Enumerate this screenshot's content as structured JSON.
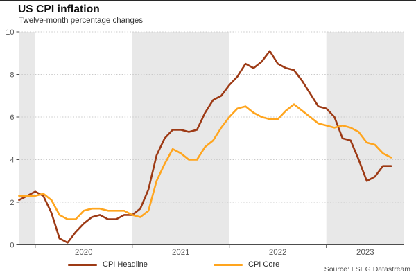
{
  "source": "Source: LSEG Datastream",
  "chart_data": {
    "type": "line",
    "title": "US CPI inflation",
    "subtitle": "Twelve-month percentage changes",
    "x_start": "2019-11",
    "x_end": "2023-09",
    "x_step": "1 month",
    "x_axis_year_labels": [
      "2020",
      "2021",
      "2022",
      "2023"
    ],
    "y_ticks": [
      0,
      2,
      4,
      6,
      8,
      10
    ],
    "ylim": [
      0,
      10
    ],
    "grid": "horizontal dotted lines at each y tick",
    "legend_position": "bottom",
    "plot_bands": {
      "shaded_years": [
        "2019",
        "2021",
        "2023"
      ],
      "color": "#e8e8e8"
    },
    "series": [
      {
        "name": "CPI Headline",
        "color": "#9d3a15",
        "values": [
          2.1,
          2.3,
          2.5,
          2.3,
          1.5,
          0.3,
          0.1,
          0.6,
          1.0,
          1.3,
          1.4,
          1.2,
          1.2,
          1.4,
          1.4,
          1.7,
          2.6,
          4.2,
          5.0,
          5.4,
          5.4,
          5.3,
          5.4,
          6.2,
          6.8,
          7.0,
          7.5,
          7.9,
          8.5,
          8.3,
          8.6,
          9.1,
          8.5,
          8.3,
          8.2,
          7.7,
          7.1,
          6.5,
          6.4,
          6.0,
          5.0,
          4.9,
          4.0,
          3.0,
          3.2,
          3.7,
          3.7
        ]
      },
      {
        "name": "CPI Core",
        "color": "#ffa51e",
        "values": [
          2.3,
          2.3,
          2.3,
          2.4,
          2.1,
          1.4,
          1.2,
          1.2,
          1.6,
          1.7,
          1.7,
          1.6,
          1.6,
          1.6,
          1.4,
          1.3,
          1.6,
          3.0,
          3.8,
          4.5,
          4.3,
          4.0,
          4.0,
          4.6,
          4.9,
          5.5,
          6.0,
          6.4,
          6.5,
          6.2,
          6.0,
          5.9,
          5.9,
          6.3,
          6.6,
          6.3,
          6.0,
          5.7,
          5.6,
          5.5,
          5.6,
          5.5,
          5.3,
          4.8,
          4.7,
          4.3,
          4.1
        ]
      }
    ]
  }
}
